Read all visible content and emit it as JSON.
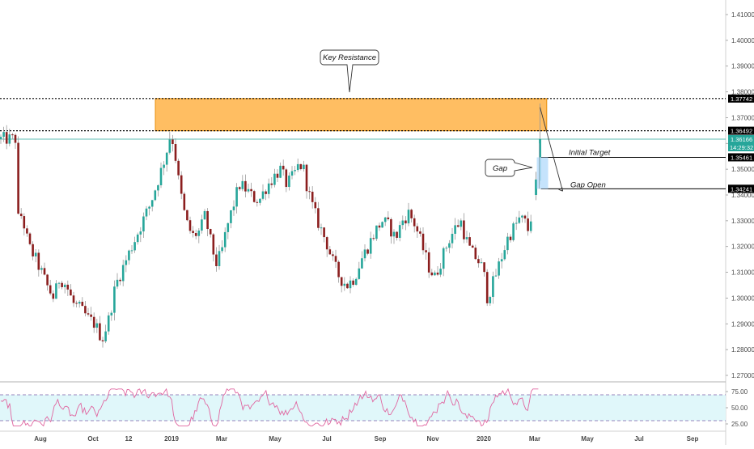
{
  "chart_data": [
    {
      "type": "candlestick",
      "title": "",
      "ylim": [
        1.265,
        1.416
      ],
      "y_ticks": [
        "1.41000",
        "1.40000",
        "1.39000",
        "1.38000",
        "1.37000",
        "1.36000",
        "1.35000",
        "1.34000",
        "1.33000",
        "1.32000",
        "1.31000",
        "1.30000",
        "1.29000",
        "1.28000",
        "1.27000"
      ],
      "x_ticks": [
        "Aug",
        "Oct",
        "12",
        "2019",
        "Mar",
        "May",
        "Jul",
        "Sep",
        "Nov",
        "2020",
        "Mar",
        "May",
        "Jul",
        "Sep"
      ],
      "price_path": [
        [
          "2018-07-01",
          1.325
        ],
        [
          "2018-07-05",
          1.334
        ],
        [
          "2018-07-10",
          1.329
        ],
        [
          "2018-07-16",
          1.32
        ],
        [
          "2018-07-23",
          1.316
        ],
        [
          "2018-07-30",
          1.311
        ],
        [
          "2018-08-08",
          1.304
        ],
        [
          "2018-08-15",
          1.3
        ],
        [
          "2018-08-22",
          1.308
        ],
        [
          "2018-08-30",
          1.305
        ],
        [
          "2018-09-07",
          1.298
        ],
        [
          "2018-09-15",
          1.296
        ],
        [
          "2018-09-25",
          1.292
        ],
        [
          "2018-10-03",
          1.29
        ],
        [
          "2018-10-12",
          1.284
        ],
        [
          "2018-10-20",
          1.292
        ],
        [
          "2018-10-28",
          1.305
        ],
        [
          "2018-11-06",
          1.312
        ],
        [
          "2018-11-15",
          1.319
        ],
        [
          "2018-11-23",
          1.325
        ],
        [
          "2018-12-01",
          1.331
        ],
        [
          "2018-12-08",
          1.336
        ],
        [
          "2018-12-15",
          1.343
        ],
        [
          "2018-12-22",
          1.35
        ],
        [
          "2018-12-28",
          1.357
        ],
        [
          "2019-01-02",
          1.364
        ],
        [
          "2019-01-06",
          1.359
        ],
        [
          "2019-01-12",
          1.344
        ],
        [
          "2019-01-20",
          1.33
        ],
        [
          "2019-01-28",
          1.324
        ],
        [
          "2019-02-06",
          1.326
        ],
        [
          "2019-02-12",
          1.332
        ],
        [
          "2019-02-20",
          1.32
        ],
        [
          "2019-02-26",
          1.313
        ],
        [
          "2019-03-04",
          1.318
        ],
        [
          "2019-03-10",
          1.327
        ],
        [
          "2019-03-17",
          1.335
        ],
        [
          "2019-03-25",
          1.344
        ],
        [
          "2019-04-03",
          1.342
        ],
        [
          "2019-04-10",
          1.339
        ],
        [
          "2019-04-18",
          1.338
        ],
        [
          "2019-04-26",
          1.343
        ],
        [
          "2019-05-05",
          1.347
        ],
        [
          "2019-05-13",
          1.35
        ],
        [
          "2019-05-21",
          1.344
        ],
        [
          "2019-05-28",
          1.347
        ],
        [
          "2019-06-05",
          1.352
        ],
        [
          "2019-06-10",
          1.35
        ],
        [
          "2019-06-15",
          1.342
        ],
        [
          "2019-06-22",
          1.334
        ],
        [
          "2019-06-29",
          1.328
        ],
        [
          "2019-07-07",
          1.322
        ],
        [
          "2019-07-15",
          1.314
        ],
        [
          "2019-07-23",
          1.308
        ],
        [
          "2019-08-01",
          1.305
        ],
        [
          "2019-08-10",
          1.308
        ],
        [
          "2019-08-18",
          1.315
        ],
        [
          "2019-08-26",
          1.32
        ],
        [
          "2019-09-04",
          1.326
        ],
        [
          "2019-09-12",
          1.33
        ],
        [
          "2019-09-20",
          1.328
        ],
        [
          "2019-09-28",
          1.323
        ],
        [
          "2019-10-06",
          1.33
        ],
        [
          "2019-10-14",
          1.333
        ],
        [
          "2019-10-22",
          1.328
        ],
        [
          "2019-10-30",
          1.32
        ],
        [
          "2019-11-07",
          1.312
        ],
        [
          "2019-11-14",
          1.308
        ],
        [
          "2019-11-22",
          1.315
        ],
        [
          "2019-11-30",
          1.322
        ],
        [
          "2019-12-08",
          1.327
        ],
        [
          "2019-12-15",
          1.33
        ],
        [
          "2019-12-20",
          1.324
        ],
        [
          "2019-12-27",
          1.318
        ],
        [
          "2020-01-04",
          1.315
        ],
        [
          "2020-01-11",
          1.311
        ],
        [
          "2020-01-16",
          1.3
        ],
        [
          "2020-01-24",
          1.307
        ],
        [
          "2020-02-01",
          1.315
        ],
        [
          "2020-02-09",
          1.323
        ],
        [
          "2020-02-16",
          1.327
        ],
        [
          "2020-02-24",
          1.331
        ],
        [
          "2020-03-02",
          1.329
        ],
        [
          "2020-03-05",
          1.326
        ],
        [
          "2020-03-09",
          1.333
        ],
        [
          "2020-03-13",
          1.34
        ],
        [
          "2020-03-16",
          1.345
        ],
        [
          "2020-03-19",
          1.3617
        ]
      ],
      "resistance_zone": {
        "from": 1.3649,
        "to": 1.3774,
        "start": "2019-01-01",
        "end": "2020-03-27",
        "color": "#ffb347"
      },
      "levels": [
        {
          "price": 1.37742,
          "label": "1.37742",
          "style": "dotted",
          "color": "#000000"
        },
        {
          "price": 1.36492,
          "label": "1.36492",
          "style": "dotted",
          "color": "#000000"
        },
        {
          "price": 1.35461,
          "label": "1.35461",
          "style": "solid",
          "color": "#000000"
        },
        {
          "price": 1.34241,
          "label": "1.34241",
          "style": "solid",
          "color": "#000000"
        }
      ],
      "current_price": {
        "value": 1.36166,
        "label": "1.36166",
        "countdown": "14:29:32",
        "color": "#26a69a"
      },
      "annotations": [
        {
          "text": "Key Resistance",
          "type": "callout"
        },
        {
          "text": "Gap",
          "type": "callout"
        },
        {
          "text": "Initial Target",
          "type": "label"
        },
        {
          "text": "Gap Open",
          "type": "label"
        }
      ],
      "colors": {
        "up": "#26a69a",
        "down": "#8b1e1e",
        "wick": "#9a9a9a"
      }
    },
    {
      "type": "line",
      "title": "",
      "ylim": [
        20,
        80
      ],
      "y_ticks": [
        "75.00",
        "50.00",
        "25.00"
      ],
      "bands": [
        70,
        30
      ],
      "band_fill": "#e0f7fa",
      "line_color": "#e066a0"
    }
  ]
}
